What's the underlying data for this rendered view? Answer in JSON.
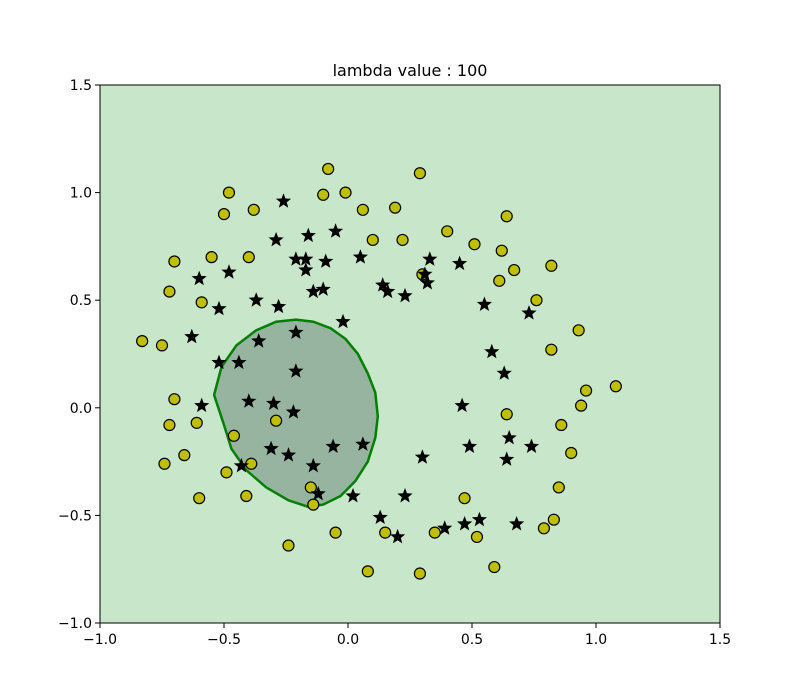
{
  "chart_data": {
    "type": "scatter",
    "title": "lambda value : 100",
    "xlabel": "",
    "ylabel": "",
    "xlim": [
      -1.0,
      1.5
    ],
    "ylim": [
      -1.0,
      1.5
    ],
    "xticks": [
      -1.0,
      -0.5,
      0.0,
      0.5,
      1.0,
      1.5
    ],
    "xtick_labels": [
      "−1.0",
      "−0.5",
      "0.0",
      "0.5",
      "1.0",
      "1.5"
    ],
    "yticks": [
      -1.0,
      -0.5,
      0.0,
      0.5,
      1.0,
      1.5
    ],
    "ytick_labels": [
      "−1.0",
      "−0.5",
      "0.0",
      "0.5",
      "1.0",
      "1.5"
    ],
    "grid": false,
    "background_region_color": "#c8e6c9",
    "decision_region_color": "#96b4a0",
    "boundary_color": "#008000",
    "circle_color": "#bfbf00",
    "star_color": "#000000",
    "decision_boundary": [
      [
        -0.21,
        0.41
      ],
      [
        -0.14,
        0.4
      ],
      [
        -0.07,
        0.37
      ],
      [
        -0.01,
        0.32
      ],
      [
        0.04,
        0.25
      ],
      [
        0.08,
        0.16
      ],
      [
        0.11,
        0.07
      ],
      [
        0.12,
        -0.04
      ],
      [
        0.11,
        -0.14
      ],
      [
        0.08,
        -0.25
      ],
      [
        0.03,
        -0.34
      ],
      [
        -0.03,
        -0.41
      ],
      [
        -0.1,
        -0.45
      ],
      [
        -0.16,
        -0.46
      ],
      [
        -0.24,
        -0.43
      ],
      [
        -0.33,
        -0.37
      ],
      [
        -0.41,
        -0.29
      ],
      [
        -0.47,
        -0.19
      ],
      [
        -0.5,
        -0.08
      ],
      [
        -0.54,
        0.06
      ],
      [
        -0.51,
        0.19
      ],
      [
        -0.45,
        0.29
      ],
      [
        -0.37,
        0.36
      ],
      [
        -0.29,
        0.4
      ],
      [
        -0.21,
        0.41
      ]
    ],
    "series": [
      {
        "marker": "circle",
        "points": [
          [
            -0.08,
            1.11
          ],
          [
            0.29,
            1.09
          ],
          [
            -0.48,
            1.0
          ],
          [
            -0.1,
            0.99
          ],
          [
            -0.01,
            1.0
          ],
          [
            -0.5,
            0.9
          ],
          [
            -0.38,
            0.92
          ],
          [
            0.06,
            0.92
          ],
          [
            0.19,
            0.93
          ],
          [
            0.64,
            0.89
          ],
          [
            0.4,
            0.82
          ],
          [
            0.1,
            0.78
          ],
          [
            0.22,
            0.78
          ],
          [
            0.51,
            0.76
          ],
          [
            0.62,
            0.73
          ],
          [
            -0.55,
            0.7
          ],
          [
            -0.4,
            0.7
          ],
          [
            -0.7,
            0.68
          ],
          [
            0.82,
            0.66
          ],
          [
            0.67,
            0.64
          ],
          [
            0.3,
            0.62
          ],
          [
            0.61,
            0.59
          ],
          [
            -0.72,
            0.54
          ],
          [
            -0.59,
            0.49
          ],
          [
            0.76,
            0.5
          ],
          [
            0.93,
            0.36
          ],
          [
            -0.83,
            0.31
          ],
          [
            -0.75,
            0.29
          ],
          [
            0.82,
            0.27
          ],
          [
            0.96,
            0.08
          ],
          [
            1.08,
            0.1
          ],
          [
            -0.7,
            0.04
          ],
          [
            0.94,
            0.01
          ],
          [
            0.64,
            -0.03
          ],
          [
            -0.29,
            -0.06
          ],
          [
            -0.72,
            -0.08
          ],
          [
            -0.61,
            -0.07
          ],
          [
            0.86,
            -0.08
          ],
          [
            -0.46,
            -0.13
          ],
          [
            -0.66,
            -0.22
          ],
          [
            0.9,
            -0.21
          ],
          [
            -0.74,
            -0.26
          ],
          [
            -0.39,
            -0.26
          ],
          [
            -0.49,
            -0.3
          ],
          [
            -0.15,
            -0.37
          ],
          [
            0.85,
            -0.37
          ],
          [
            -0.41,
            -0.41
          ],
          [
            -0.6,
            -0.42
          ],
          [
            0.47,
            -0.42
          ],
          [
            -0.14,
            -0.45
          ],
          [
            0.83,
            -0.52
          ],
          [
            0.79,
            -0.56
          ],
          [
            -0.05,
            -0.58
          ],
          [
            0.15,
            -0.58
          ],
          [
            0.35,
            -0.58
          ],
          [
            0.52,
            -0.6
          ],
          [
            -0.24,
            -0.64
          ],
          [
            0.59,
            -0.74
          ],
          [
            0.08,
            -0.76
          ],
          [
            0.29,
            -0.77
          ]
        ]
      },
      {
        "marker": "star",
        "points": [
          [
            -0.26,
            0.96
          ],
          [
            -0.05,
            0.82
          ],
          [
            -0.16,
            0.8
          ],
          [
            -0.29,
            0.78
          ],
          [
            -0.21,
            0.69
          ],
          [
            -0.17,
            0.69
          ],
          [
            -0.09,
            0.68
          ],
          [
            0.05,
            0.7
          ],
          [
            0.33,
            0.69
          ],
          [
            0.45,
            0.67
          ],
          [
            -0.17,
            0.64
          ],
          [
            -0.48,
            0.63
          ],
          [
            -0.6,
            0.6
          ],
          [
            0.31,
            0.62
          ],
          [
            0.14,
            0.57
          ],
          [
            0.32,
            0.58
          ],
          [
            -0.14,
            0.54
          ],
          [
            -0.1,
            0.55
          ],
          [
            0.16,
            0.54
          ],
          [
            0.23,
            0.52
          ],
          [
            -0.37,
            0.5
          ],
          [
            -0.52,
            0.46
          ],
          [
            -0.28,
            0.47
          ],
          [
            0.55,
            0.48
          ],
          [
            0.73,
            0.44
          ],
          [
            -0.02,
            0.4
          ],
          [
            -0.21,
            0.35
          ],
          [
            -0.63,
            0.33
          ],
          [
            -0.36,
            0.31
          ],
          [
            0.58,
            0.26
          ],
          [
            -0.52,
            0.21
          ],
          [
            -0.44,
            0.21
          ],
          [
            -0.21,
            0.17
          ],
          [
            0.63,
            0.16
          ],
          [
            -0.4,
            0.03
          ],
          [
            -0.3,
            0.02
          ],
          [
            -0.59,
            0.01
          ],
          [
            -0.22,
            -0.02
          ],
          [
            0.46,
            0.01
          ],
          [
            0.65,
            -0.14
          ],
          [
            -0.06,
            -0.18
          ],
          [
            0.06,
            -0.17
          ],
          [
            0.49,
            -0.18
          ],
          [
            0.74,
            -0.18
          ],
          [
            -0.31,
            -0.19
          ],
          [
            -0.24,
            -0.22
          ],
          [
            0.3,
            -0.23
          ],
          [
            0.64,
            -0.24
          ],
          [
            -0.43,
            -0.27
          ],
          [
            -0.14,
            -0.27
          ],
          [
            -0.12,
            -0.4
          ],
          [
            0.02,
            -0.41
          ],
          [
            0.23,
            -0.41
          ],
          [
            0.13,
            -0.51
          ],
          [
            0.47,
            -0.54
          ],
          [
            0.53,
            -0.52
          ],
          [
            0.68,
            -0.54
          ],
          [
            0.39,
            -0.56
          ],
          [
            0.2,
            -0.6
          ]
        ]
      }
    ]
  }
}
